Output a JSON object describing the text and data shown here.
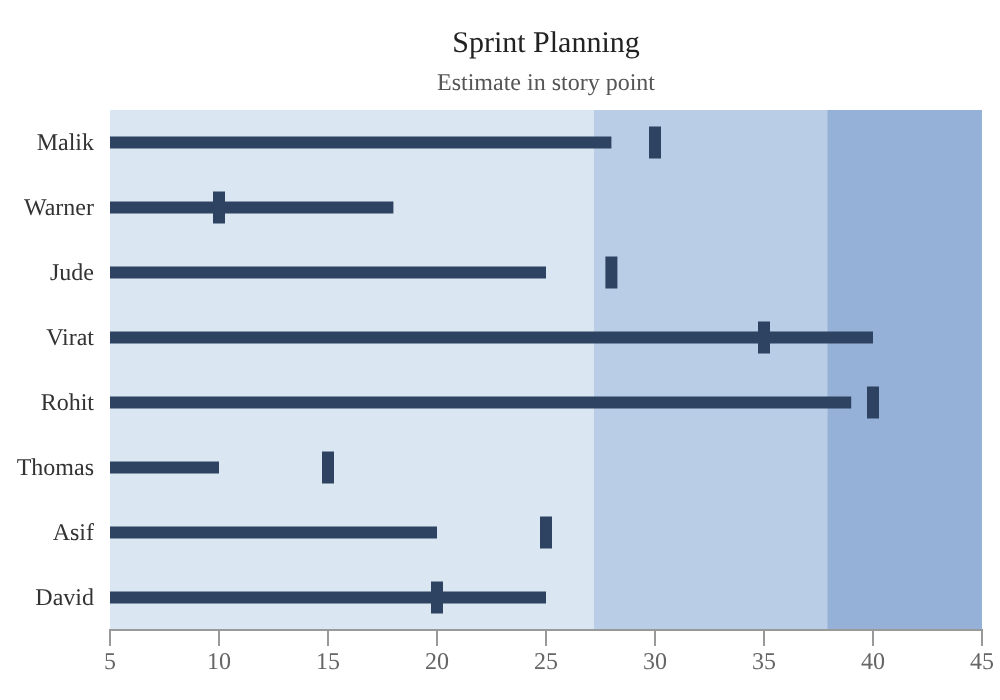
{
  "chart_data": {
    "type": "bar",
    "orientation": "horizontal",
    "title": "Sprint Planning",
    "subtitle": "Estimate in story point",
    "categories": [
      "Malik",
      "Warner",
      "Jude",
      "Virat",
      "Rohit",
      "Thomas",
      "Asif",
      "David"
    ],
    "series": [
      {
        "color": "#2e4361",
        "values": [
          28,
          18,
          25,
          40,
          39,
          10,
          20,
          25
        ]
      },
      {
        "type": "scatter",
        "color": "#2e4361",
        "values": [
          30,
          10,
          28,
          35,
          40,
          15,
          25,
          20
        ]
      }
    ],
    "bands": [
      {
        "axis": "x",
        "from": 5,
        "to": 27.2,
        "color": "#dbe6f3"
      },
      {
        "axis": "x",
        "from": 27.2,
        "to": 37.9,
        "color": "#b9cde6"
      },
      {
        "axis": "x",
        "from": 37.9,
        "to": 45,
        "color": "#95b1d7"
      }
    ],
    "xlim": [
      5,
      45
    ],
    "xticks": [
      5,
      10,
      15,
      20,
      25,
      30,
      35,
      40,
      45
    ],
    "grid": false
  }
}
